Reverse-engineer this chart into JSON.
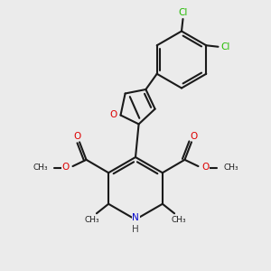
{
  "bg_color": "#ebebeb",
  "bond_color": "#1a1a1a",
  "bond_width": 1.5,
  "atom_colors": {
    "O": "#dd0000",
    "N": "#0000cc",
    "Cl": "#22bb00",
    "C": "#1a1a1a",
    "H": "#444444"
  },
  "font_size_atom": 7.5,
  "font_size_small": 6.5,
  "figsize": [
    3.0,
    3.0
  ],
  "dpi": 100,
  "xlim": [
    0,
    10
  ],
  "ylim": [
    0,
    10
  ]
}
